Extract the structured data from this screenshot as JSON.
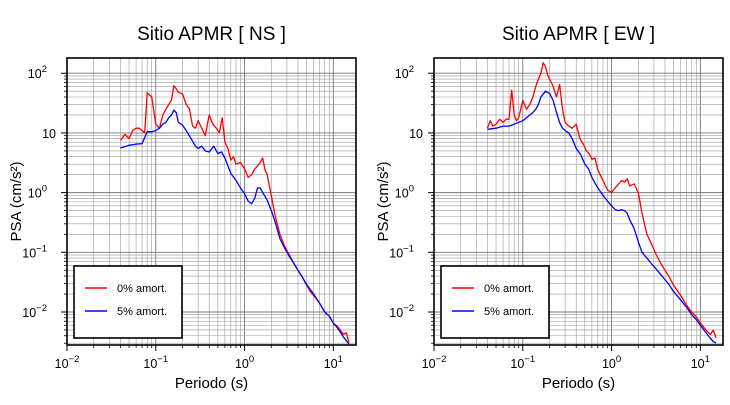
{
  "chart_data": [
    {
      "type": "line",
      "title": "Sitio APMR [ NS ]",
      "xlabel": "Periodo (s)",
      "ylabel": "PSA (cm/s²)",
      "x_scale": "log",
      "y_scale": "log",
      "xlim": [
        0.01,
        18
      ],
      "ylim": [
        0.0028,
        180
      ],
      "grid": true,
      "legend_position": "lower-left",
      "x_ticks": [
        {
          "value": 0.01,
          "base": "10",
          "exp": "−2"
        },
        {
          "value": 0.1,
          "base": "10",
          "exp": "−1"
        },
        {
          "value": 1,
          "base": "10",
          "exp": "0"
        },
        {
          "value": 10,
          "base": "10",
          "exp": "1"
        }
      ],
      "y_ticks": [
        {
          "value": 0.01,
          "label": "10",
          "exp": "−2"
        },
        {
          "value": 0.1,
          "label": "10",
          "exp": "−1"
        },
        {
          "value": 1,
          "label": "10",
          "exp": "0"
        },
        {
          "value": 10,
          "label": "10",
          "exp": ""
        },
        {
          "value": 100,
          "label": "10",
          "exp": "2"
        }
      ],
      "series": [
        {
          "name": "0% amort.",
          "color": "#ff0000",
          "x": [
            0.04,
            0.045,
            0.05,
            0.055,
            0.06,
            0.065,
            0.07,
            0.075,
            0.08,
            0.09,
            0.1,
            0.11,
            0.12,
            0.13,
            0.14,
            0.15,
            0.16,
            0.17,
            0.18,
            0.2,
            0.22,
            0.24,
            0.26,
            0.28,
            0.3,
            0.33,
            0.36,
            0.4,
            0.44,
            0.48,
            0.52,
            0.56,
            0.6,
            0.65,
            0.7,
            0.75,
            0.8,
            0.9,
            1.0,
            1.1,
            1.2,
            1.3,
            1.4,
            1.5,
            1.6,
            1.7,
            1.8,
            2.0,
            2.2,
            2.5,
            2.8,
            3.2,
            3.6,
            4.0,
            4.5,
            5.0,
            5.5,
            6,
            7,
            8,
            9,
            10,
            11,
            12,
            13,
            14,
            15
          ],
          "values": [
            7.5,
            9.5,
            8,
            11,
            12,
            12,
            11,
            10,
            47,
            40,
            14,
            12,
            20,
            25,
            30,
            35,
            62,
            55,
            48,
            45,
            30,
            25,
            13,
            12,
            16,
            12,
            9,
            20,
            14,
            12,
            10,
            18,
            7,
            5.5,
            3.5,
            4,
            3,
            3.2,
            2.5,
            1.8,
            2,
            2.5,
            2.8,
            3.2,
            3.8,
            2.4,
            2,
            0.9,
            0.42,
            0.2,
            0.13,
            0.09,
            0.065,
            0.05,
            0.038,
            0.028,
            0.022,
            0.019,
            0.014,
            0.01,
            0.0085,
            0.0065,
            0.0058,
            0.005,
            0.0042,
            0.0045,
            0.0031
          ]
        },
        {
          "name": "5% amort.",
          "color": "#0000ff",
          "x": [
            0.04,
            0.05,
            0.06,
            0.07,
            0.08,
            0.09,
            0.1,
            0.11,
            0.12,
            0.13,
            0.14,
            0.15,
            0.16,
            0.17,
            0.18,
            0.2,
            0.22,
            0.25,
            0.28,
            0.3,
            0.33,
            0.36,
            0.4,
            0.45,
            0.5,
            0.55,
            0.6,
            0.7,
            0.8,
            0.9,
            1.0,
            1.1,
            1.2,
            1.3,
            1.4,
            1.5,
            1.6,
            1.8,
            2.0,
            2.2,
            2.5,
            2.8,
            3.2,
            3.6,
            4.0,
            4.5,
            5.0,
            6,
            7,
            8,
            9,
            10,
            11,
            12,
            13,
            14,
            15
          ],
          "values": [
            5.6,
            6.2,
            6.5,
            6.6,
            10.5,
            10.5,
            11,
            12,
            14,
            15,
            18,
            20,
            24,
            22,
            15,
            13.5,
            11,
            8,
            6,
            5.5,
            6,
            5,
            4.8,
            6,
            4.5,
            4.8,
            3.8,
            2.1,
            1.6,
            1.2,
            0.95,
            0.72,
            0.65,
            0.8,
            1.2,
            1.2,
            1.0,
            0.75,
            0.5,
            0.33,
            0.17,
            0.12,
            0.085,
            0.065,
            0.05,
            0.038,
            0.029,
            0.02,
            0.014,
            0.01,
            0.0085,
            0.0065,
            0.0055,
            0.0046,
            0.0038,
            0.0033,
            0.0029
          ]
        }
      ]
    },
    {
      "type": "line",
      "title": "Sitio APMR [ EW ]",
      "xlabel": "Periodo (s)",
      "ylabel": "PSA (cm/s²)",
      "x_scale": "log",
      "y_scale": "log",
      "xlim": [
        0.01,
        18
      ],
      "ylim": [
        0.0028,
        180
      ],
      "grid": true,
      "legend_position": "lower-left",
      "x_ticks": [
        {
          "value": 0.01,
          "base": "10",
          "exp": "−2"
        },
        {
          "value": 0.1,
          "base": "10",
          "exp": "−1"
        },
        {
          "value": 1,
          "base": "10",
          "exp": "0"
        },
        {
          "value": 10,
          "base": "10",
          "exp": "1"
        }
      ],
      "y_ticks": [
        {
          "value": 0.01,
          "label": "10",
          "exp": "−2"
        },
        {
          "value": 0.1,
          "label": "10",
          "exp": "−1"
        },
        {
          "value": 1,
          "label": "10",
          "exp": "0"
        },
        {
          "value": 10,
          "label": "10",
          "exp": ""
        },
        {
          "value": 100,
          "label": "10",
          "exp": "2"
        }
      ],
      "series": [
        {
          "name": "0% amort.",
          "color": "#ff0000",
          "x": [
            0.04,
            0.043,
            0.046,
            0.05,
            0.055,
            0.06,
            0.065,
            0.07,
            0.075,
            0.08,
            0.085,
            0.09,
            0.1,
            0.11,
            0.12,
            0.13,
            0.14,
            0.15,
            0.16,
            0.17,
            0.18,
            0.19,
            0.2,
            0.21,
            0.22,
            0.24,
            0.26,
            0.28,
            0.3,
            0.33,
            0.36,
            0.4,
            0.44,
            0.48,
            0.52,
            0.56,
            0.6,
            0.65,
            0.7,
            0.8,
            0.9,
            1.0,
            1.1,
            1.2,
            1.3,
            1.4,
            1.5,
            1.6,
            1.8,
            2.0,
            2.2,
            2.5,
            2.8,
            3.2,
            3.6,
            4.0,
            4.5,
            5.0,
            6,
            7,
            8,
            9,
            10,
            11,
            12,
            13,
            14,
            15
          ],
          "values": [
            12,
            16,
            13,
            14,
            17,
            15,
            17,
            17,
            52,
            20,
            16,
            18,
            35,
            25,
            30,
            40,
            60,
            80,
            100,
            150,
            130,
            95,
            80,
            70,
            60,
            40,
            65,
            25,
            15,
            13,
            12,
            14,
            8,
            6.5,
            5,
            4.5,
            3.6,
            3.8,
            2.4,
            1.6,
            1.1,
            1.0,
            1.2,
            1.4,
            1.6,
            1.5,
            1.7,
            1.3,
            1.4,
            1.0,
            0.45,
            0.2,
            0.14,
            0.09,
            0.065,
            0.05,
            0.038,
            0.028,
            0.019,
            0.013,
            0.01,
            0.0083,
            0.0066,
            0.0055,
            0.0047,
            0.0042,
            0.005,
            0.0037
          ]
        },
        {
          "name": "5% amort.",
          "color": "#0000ff",
          "x": [
            0.04,
            0.05,
            0.06,
            0.07,
            0.08,
            0.09,
            0.1,
            0.11,
            0.12,
            0.13,
            0.14,
            0.15,
            0.16,
            0.18,
            0.2,
            0.22,
            0.24,
            0.26,
            0.28,
            0.3,
            0.33,
            0.36,
            0.4,
            0.45,
            0.5,
            0.55,
            0.6,
            0.7,
            0.8,
            0.9,
            1.0,
            1.1,
            1.2,
            1.3,
            1.4,
            1.5,
            1.6,
            1.8,
            2.0,
            2.2,
            2.5,
            2.8,
            3.2,
            3.6,
            4.0,
            4.5,
            5.0,
            6,
            7,
            8,
            9,
            10,
            11,
            12,
            13,
            14,
            15
          ],
          "values": [
            11.5,
            12,
            13,
            13,
            14,
            15,
            16,
            18,
            20,
            22,
            25,
            30,
            40,
            50,
            46,
            35,
            22,
            15,
            12,
            11,
            10,
            8,
            5.5,
            4.3,
            3.0,
            2.5,
            1.8,
            1.2,
            0.9,
            0.72,
            0.6,
            0.52,
            0.5,
            0.52,
            0.5,
            0.45,
            0.35,
            0.25,
            0.15,
            0.1,
            0.08,
            0.065,
            0.052,
            0.042,
            0.035,
            0.028,
            0.022,
            0.016,
            0.012,
            0.009,
            0.0075,
            0.006,
            0.005,
            0.0042,
            0.0036,
            0.0032,
            0.003
          ]
        }
      ]
    }
  ]
}
